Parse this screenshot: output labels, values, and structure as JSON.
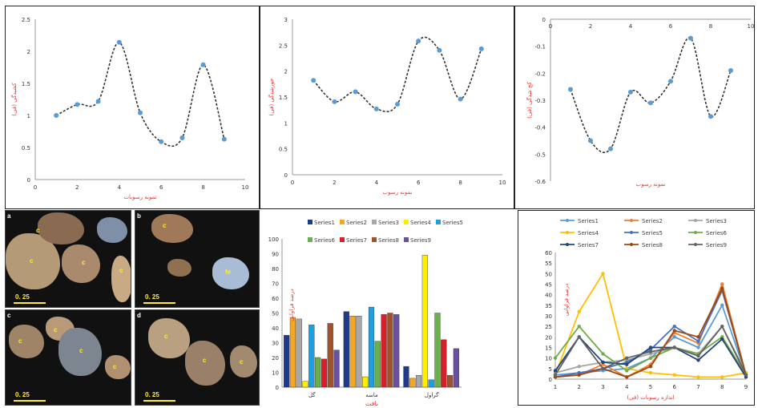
{
  "chart_data": [
    {
      "type": "line",
      "xlabel": "نمونه رسوبات",
      "ylabel": "کشیدگی (فی)",
      "xlim": [
        0,
        10
      ],
      "ylim": [
        0,
        2.5
      ],
      "xticks": [
        "0",
        "2",
        "4",
        "6",
        "8",
        "10"
      ],
      "yticks": [
        "0",
        "0.5",
        "1",
        "1.5",
        "2",
        "2.5"
      ],
      "x": [
        1,
        2,
        3,
        4,
        5,
        6,
        7,
        8,
        9
      ],
      "values": [
        1.0,
        1.17,
        1.22,
        2.14,
        1.04,
        0.59,
        0.65,
        1.79,
        0.63
      ],
      "color": "#5b9bd5"
    },
    {
      "type": "line",
      "xlabel": "نمونه رسوب",
      "ylabel": "جورشدگی (فی)",
      "xlim": [
        0,
        10
      ],
      "ylim": [
        0,
        3
      ],
      "xticks": [
        "0",
        "2",
        "4",
        "6",
        "8",
        "10"
      ],
      "yticks": [
        "0",
        "0.5",
        "1",
        "1.5",
        "2",
        "2.5",
        "3"
      ],
      "x": [
        1,
        2,
        3,
        4,
        5,
        6,
        7,
        8,
        9
      ],
      "values": [
        1.82,
        1.41,
        1.6,
        1.27,
        1.36,
        2.58,
        2.4,
        1.46,
        2.43
      ],
      "color": "#5b9bd5"
    },
    {
      "type": "line",
      "xlabel": "نمونه رسوب",
      "ylabel": "کج شدگی (فی)",
      "xlim": [
        0,
        10
      ],
      "ylim": [
        -0.6,
        0
      ],
      "xticks": [
        "0",
        "2",
        "4",
        "6",
        "8",
        "10"
      ],
      "yticks": [
        "0",
        "-0.1",
        "-0.2",
        "-0.3",
        "-0.4",
        "-0.5",
        "-0.6"
      ],
      "x": [
        1,
        2,
        3,
        4,
        5,
        6,
        7,
        8,
        9
      ],
      "values": [
        -0.26,
        -0.45,
        -0.48,
        -0.27,
        -0.31,
        -0.23,
        -0.07,
        -0.36,
        -0.19
      ],
      "color": "#5b9bd5"
    },
    {
      "type": "bar",
      "xlabel": "بافت",
      "ylabel": "درصد فراوانی",
      "ylim": [
        0,
        100
      ],
      "yticks": [
        "0",
        "10",
        "20",
        "30",
        "40",
        "50",
        "60",
        "70",
        "80",
        "90",
        "100"
      ],
      "categories": [
        "گل",
        "ماسه",
        "گراول"
      ],
      "series": [
        {
          "name": "Series1",
          "color": "#1f3a8a",
          "values": [
            35,
            51,
            14
          ]
        },
        {
          "name": "Series2",
          "color": "#f5a623",
          "values": [
            47,
            48,
            6
          ]
        },
        {
          "name": "Series3",
          "color": "#a8a8a8",
          "values": [
            46,
            48,
            8
          ]
        },
        {
          "name": "Series4",
          "color": "#ffee00",
          "values": [
            4,
            7,
            89
          ]
        },
        {
          "name": "Series5",
          "color": "#1ea0e0",
          "values": [
            42,
            54,
            5
          ]
        },
        {
          "name": "Series6",
          "color": "#6ab04c",
          "values": [
            20,
            31,
            50
          ]
        },
        {
          "name": "Series7",
          "color": "#d6202a",
          "values": [
            19,
            49,
            32
          ]
        },
        {
          "name": "Series8",
          "color": "#a0522d",
          "values": [
            43,
            50,
            8
          ]
        },
        {
          "name": "Series9",
          "color": "#6b4fa0",
          "values": [
            25,
            49,
            26
          ]
        }
      ],
      "legend": "top"
    },
    {
      "type": "line",
      "xlabel": "اندازه رسوبات (فی)",
      "ylabel": "درصد فراوانی",
      "ylim": [
        0,
        60
      ],
      "yticks": [
        "0",
        "5",
        "10",
        "15",
        "20",
        "25",
        "30",
        "35",
        "40",
        "45",
        "50",
        "55",
        "60"
      ],
      "categories": [
        "1",
        "2",
        "3",
        "4",
        "5",
        "6",
        "7",
        "8",
        "9"
      ],
      "series": [
        {
          "name": "Series1",
          "color": "#5b9bd5",
          "values": [
            2,
            3,
            4,
            5,
            10,
            20,
            15,
            35,
            2
          ]
        },
        {
          "name": "Series2",
          "color": "#ed7d31",
          "values": [
            1,
            2,
            7,
            1,
            7,
            22,
            17,
            45,
            2
          ]
        },
        {
          "name": "Series3",
          "color": "#a5a5a5",
          "values": [
            3,
            6,
            8,
            9,
            12,
            15,
            12,
            25,
            3
          ]
        },
        {
          "name": "Series4",
          "color": "#ffc000",
          "values": [
            2,
            32,
            50,
            5,
            3,
            2,
            1,
            1,
            3
          ]
        },
        {
          "name": "Series5",
          "color": "#4472c4",
          "values": [
            1,
            3,
            5,
            8,
            14,
            25,
            18,
            42,
            2
          ]
        },
        {
          "name": "Series6",
          "color": "#70ad47",
          "values": [
            10,
            25,
            12,
            4,
            10,
            15,
            12,
            20,
            2
          ]
        },
        {
          "name": "Series7",
          "color": "#264478",
          "values": [
            4,
            20,
            8,
            7,
            15,
            15,
            9,
            19,
            1
          ]
        },
        {
          "name": "Series8",
          "color": "#9e480e",
          "values": [
            1,
            2,
            5,
            1,
            6,
            23,
            20,
            43,
            2
          ]
        },
        {
          "name": "Series9",
          "color": "#636363",
          "values": [
            2,
            20,
            5,
            10,
            13,
            15,
            11,
            25,
            2
          ]
        }
      ],
      "legend": "top"
    }
  ],
  "photos": [
    {
      "label": "a",
      "scale": "0. 25"
    },
    {
      "label": "b",
      "scale": "0. 25"
    },
    {
      "label": "c",
      "scale": "0. 25"
    },
    {
      "label": "d",
      "scale": "0. 25"
    }
  ]
}
